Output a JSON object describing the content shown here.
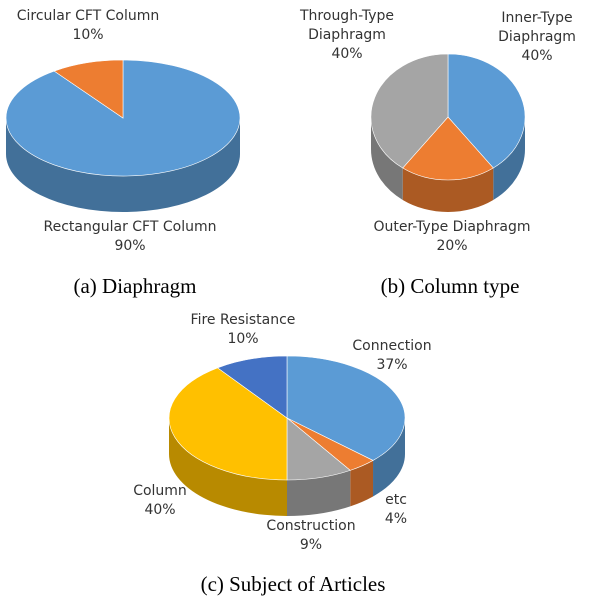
{
  "chart_data": [
    {
      "type": "pie",
      "caption": "(a) Diaphragm",
      "categories": [
        "Rectangular CFT Column",
        "Circular CFT Column"
      ],
      "values": [
        90,
        10
      ],
      "value_labels": [
        "90%",
        "10%"
      ],
      "colors": [
        "#5b9bd5",
        "#ed7d31"
      ]
    },
    {
      "type": "pie",
      "caption": "(b) Column type",
      "categories": [
        "Inner-Type Diaphragm",
        "Outer-Type Diaphragm",
        "Through-Type Diaphragm"
      ],
      "values": [
        40,
        20,
        40
      ],
      "value_labels": [
        "40%",
        "20%",
        "40%"
      ],
      "colors": [
        "#5b9bd5",
        "#ed7d31",
        "#a5a5a5"
      ]
    },
    {
      "type": "pie",
      "caption": "(c) Subject of Articles",
      "categories": [
        "Connection",
        "etc",
        "Construction",
        "Column",
        "Fire Resistance"
      ],
      "values": [
        37,
        4,
        9,
        40,
        10
      ],
      "value_labels": [
        "37%",
        "4%",
        "9%",
        "40%",
        "10%"
      ],
      "colors": [
        "#5b9bd5",
        "#ed7d31",
        "#a5a5a5",
        "#ffc000",
        "#4472c4"
      ]
    }
  ]
}
